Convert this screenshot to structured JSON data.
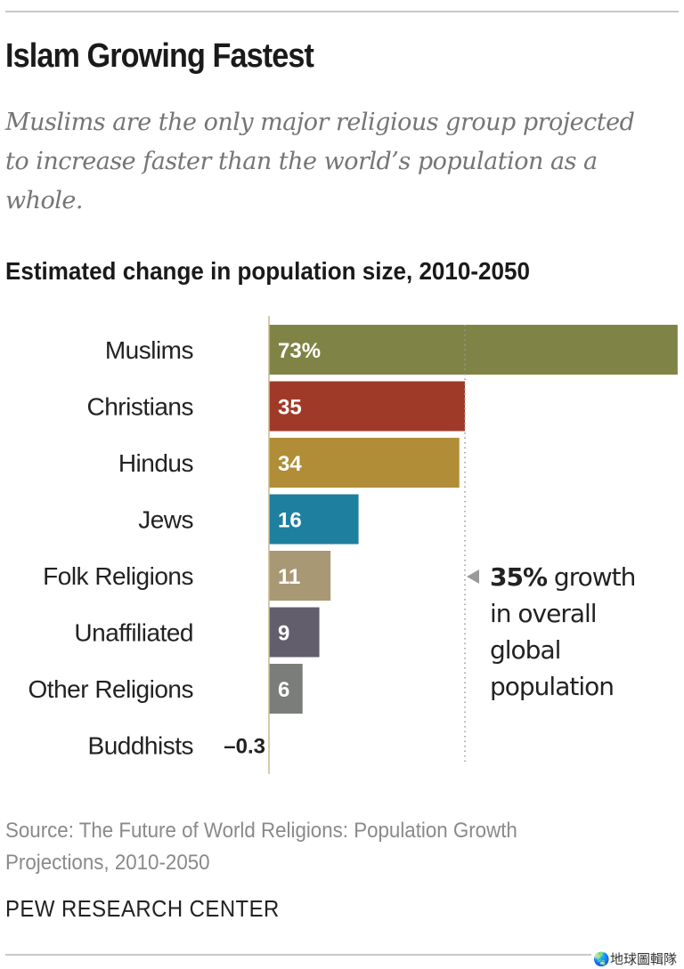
{
  "title": "Islam Growing Fastest",
  "subtitle": "Muslims are the only major religious group projected to increase faster than the world’s population as a whole.",
  "source": "Source: The Future of World Religions: Population Growth Projections, 2010-2050",
  "brand": "PEW RESEARCH CENTER",
  "watermark": "地球圖輯隊",
  "chart_data": {
    "type": "bar",
    "orientation": "horizontal",
    "title": "Estimated change in population size, 2010-2050",
    "xlabel": "",
    "ylabel": "",
    "unit": "%",
    "categories": [
      "Muslims",
      "Christians",
      "Hindus",
      "Jews",
      "Folk Religions",
      "Unaffiliated",
      "Other Religions",
      "Buddhists"
    ],
    "values": [
      73,
      35,
      34,
      16,
      11,
      9,
      6,
      -0.3
    ],
    "value_labels": [
      "73%",
      "35",
      "34",
      "16",
      "11",
      "9",
      "6",
      "–0.3"
    ],
    "colors": [
      "#7f8446",
      "#a03a28",
      "#b08d36",
      "#1e7f9e",
      "#a89873",
      "#625e6c",
      "#7b7d7b",
      "#b08d36"
    ],
    "xlim": [
      0,
      73
    ],
    "grid": false,
    "reference_line": {
      "value": 35,
      "style": "dotted",
      "annotation": [
        "35% growth",
        "in overall",
        "global",
        "population"
      ]
    }
  }
}
